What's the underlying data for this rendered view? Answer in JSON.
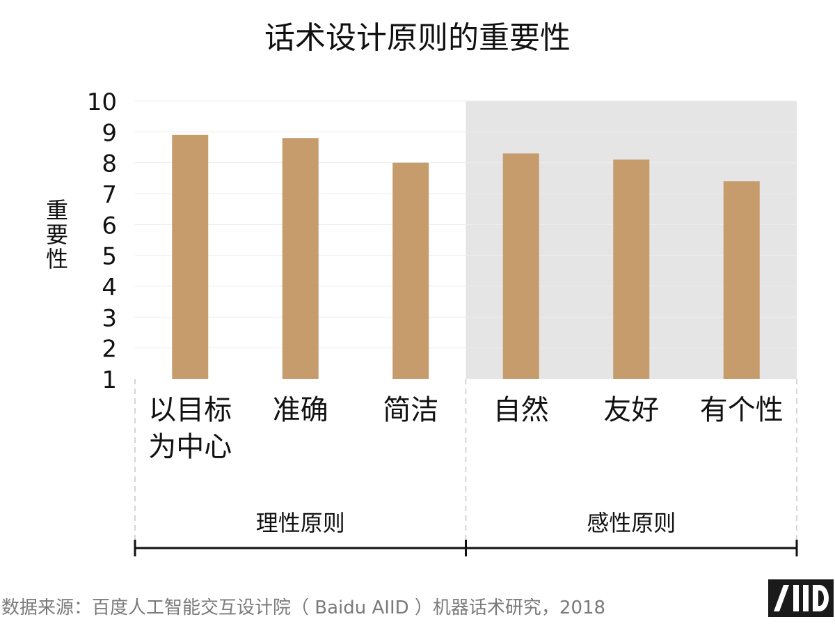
{
  "chart_data": {
    "type": "bar",
    "title": "话术设计原则的重要性",
    "ylabel": "重要性",
    "xlabel": "",
    "ylim": [
      1,
      10
    ],
    "yticks": [
      1,
      2,
      3,
      4,
      5,
      6,
      7,
      8,
      9,
      10
    ],
    "categories": [
      [
        "以目标",
        "为中心"
      ],
      [
        "准确"
      ],
      [
        "简洁"
      ],
      [
        "自然"
      ],
      [
        "友好"
      ],
      [
        "有个性"
      ]
    ],
    "values": [
      8.9,
      8.8,
      8.0,
      8.3,
      8.1,
      7.4
    ],
    "groups": [
      {
        "label": "理性原则",
        "members": [
          0,
          1,
          2
        ]
      },
      {
        "label": "感性原则",
        "members": [
          3,
          4,
          5
        ]
      }
    ],
    "bar_color": "#c69c6d",
    "shaded_region_color": "#e5e5e5",
    "grid": true,
    "legend": "none"
  },
  "footer": {
    "source": "数据来源：百度人工智能交互设计院（ Baidu AIID ）机器话术研究，2018",
    "logo_text": "AIID"
  }
}
